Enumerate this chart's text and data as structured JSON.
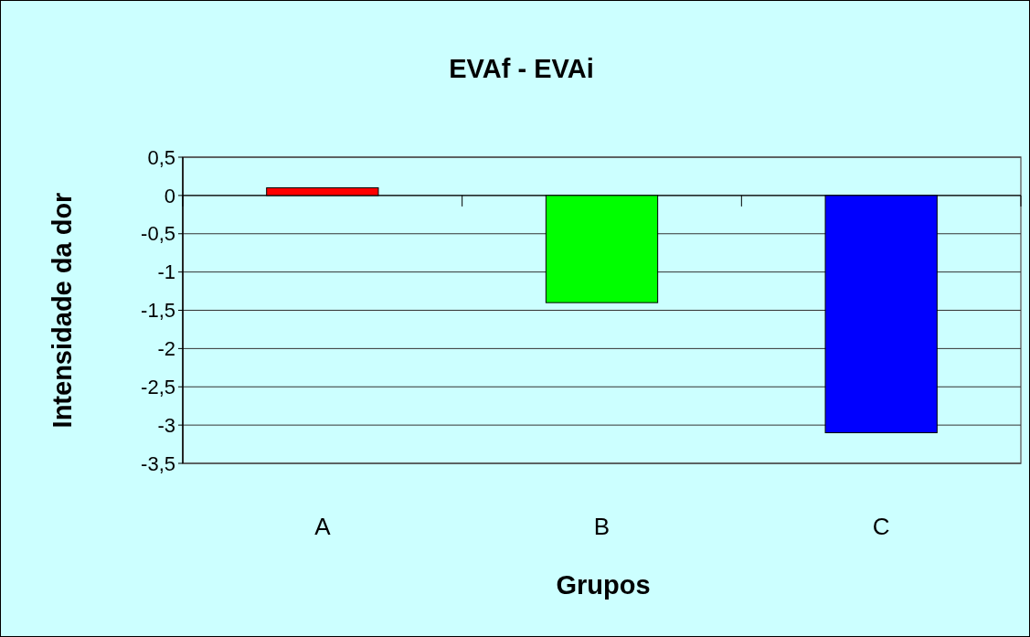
{
  "chart_data": {
    "type": "bar",
    "title": "EVAf - EVAi",
    "xlabel": "Grupos",
    "ylabel": "Intensidade da dor",
    "categories": [
      "A",
      "B",
      "C"
    ],
    "values": [
      0.1,
      -1.4,
      -3.1
    ],
    "colors": [
      "#ff0000",
      "#00ff00",
      "#0000ff"
    ],
    "ylim": [
      -3.5,
      0.5
    ],
    "yticks": [
      {
        "value": 0.5,
        "label": "0,5"
      },
      0,
      {
        "value": -0.5,
        "label": "-0,5"
      },
      -1,
      {
        "value": -1.5,
        "label": "-1,5"
      },
      -2,
      {
        "value": -2.5,
        "label": "-2,5"
      },
      -3,
      {
        "value": -3.5,
        "label": "-3,5"
      }
    ],
    "grid": "y"
  }
}
